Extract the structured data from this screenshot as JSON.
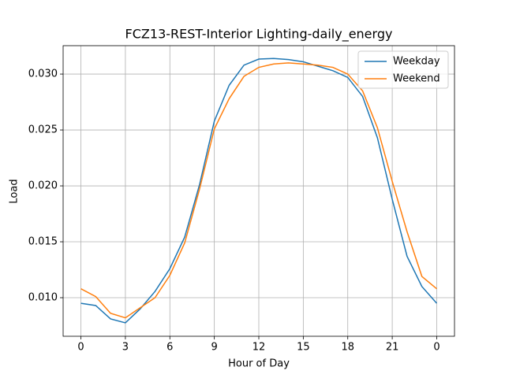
{
  "chart_data": {
    "type": "line",
    "title": "FCZ13-REST-Interior Lighting-daily_energy",
    "x_label": "Hour of Day",
    "y_label": "Load",
    "x": [
      0,
      1,
      2,
      3,
      4,
      5,
      6,
      7,
      8,
      9,
      10,
      11,
      12,
      13,
      14,
      15,
      16,
      17,
      18,
      19,
      20,
      21,
      22,
      23,
      24
    ],
    "series": [
      {
        "name": "Weekday",
        "color": "#1f77b4",
        "values": [
          0.0095,
          0.0093,
          0.0081,
          0.00775,
          0.009,
          0.01056,
          0.0126,
          0.01542,
          0.0201,
          0.0258,
          0.029,
          0.0308,
          0.03134,
          0.0314,
          0.0313,
          0.0311,
          0.0307,
          0.0303,
          0.0297,
          0.028,
          0.0243,
          0.0188,
          0.0137,
          0.011,
          0.0095
        ]
      },
      {
        "name": "Weekend",
        "color": "#ff7f0e",
        "values": [
          0.0108,
          0.0101,
          0.0086,
          0.0082,
          0.0091,
          0.01,
          0.012,
          0.0149,
          0.0197,
          0.0251,
          0.0278,
          0.0298,
          0.0306,
          0.0309,
          0.031,
          0.0309,
          0.0308,
          0.0306,
          0.03,
          0.0285,
          0.0252,
          0.0204,
          0.0159,
          0.0119,
          0.0108
        ]
      }
    ],
    "xlim": [
      -1.2,
      25.2
    ],
    "ylim": [
      0.00655,
      0.03254
    ],
    "xticks": [
      0,
      3,
      6,
      9,
      12,
      15,
      18,
      21,
      {
        "value": 24,
        "label": "0"
      }
    ],
    "yticks": [
      {
        "value": 0.01,
        "label": "0.010"
      },
      0.015,
      {
        "value": 0.02,
        "label": "0.020"
      },
      0.025,
      {
        "value": 0.03,
        "label": "0.030"
      }
    ],
    "grid": true,
    "legend": "upper right"
  }
}
